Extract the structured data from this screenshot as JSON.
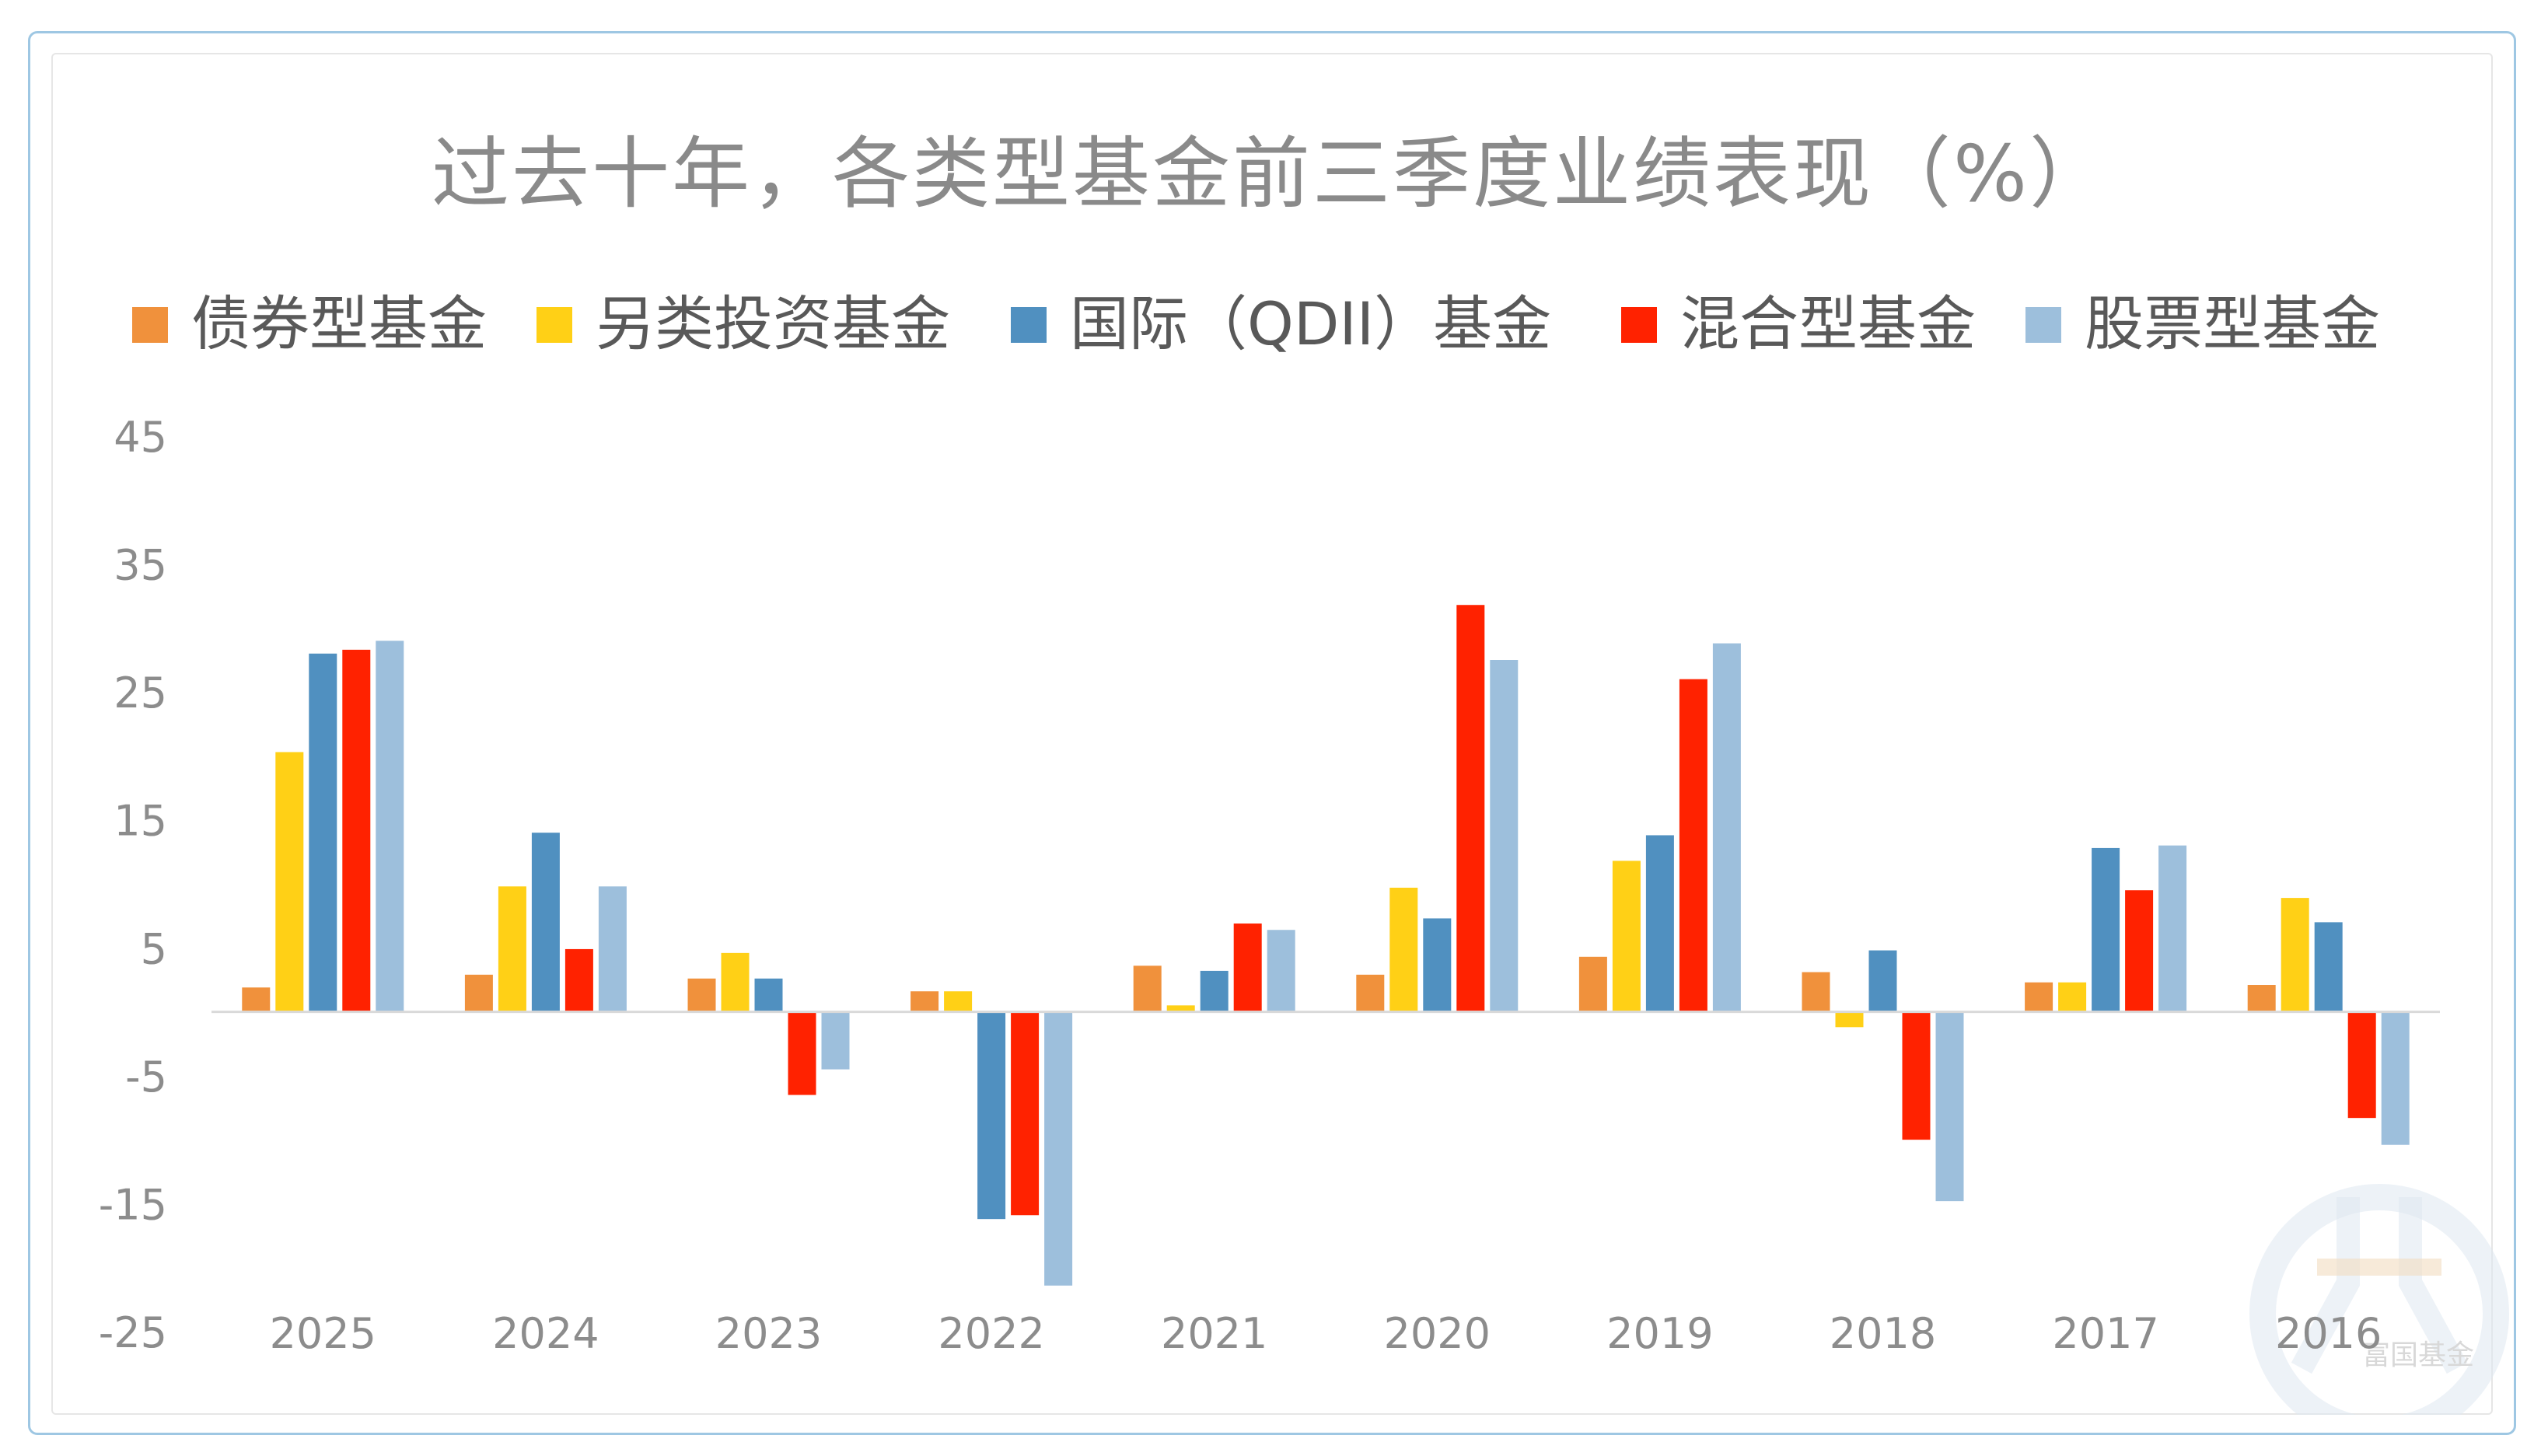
{
  "chart_data": {
    "type": "bar",
    "title": "过去十年，各类型基金前三季度业绩表现（%）",
    "xlabel": "",
    "ylabel": "",
    "ylim": [
      -25,
      45
    ],
    "yticks": [
      45,
      35,
      25,
      15,
      5,
      -5,
      -15,
      -25
    ],
    "categories": [
      "2025",
      "2024",
      "2023",
      "2022",
      "2021",
      "2020",
      "2019",
      "2018",
      "2017",
      "2016"
    ],
    "series": [
      {
        "name": "债券型基金",
        "color": "#f0913c",
        "values": [
          1.9,
          2.9,
          2.6,
          1.6,
          3.6,
          2.9,
          4.3,
          3.1,
          2.3,
          2.1
        ]
      },
      {
        "name": "另类投资基金",
        "color": "#ffd016",
        "values": [
          20.3,
          9.8,
          4.6,
          1.6,
          0.5,
          9.7,
          11.8,
          -1.2,
          2.3,
          8.9
        ]
      },
      {
        "name": "国际（QDII）基金",
        "color": "#5090c0",
        "values": [
          28.0,
          14.0,
          2.6,
          -16.2,
          3.2,
          7.3,
          13.8,
          4.8,
          12.8,
          7.0
        ]
      },
      {
        "name": "混合型基金",
        "color": "#ff2200",
        "values": [
          28.3,
          4.9,
          -6.5,
          -15.9,
          6.9,
          31.8,
          26.0,
          -10.0,
          9.5,
          -8.3
        ]
      },
      {
        "name": "股票型基金",
        "color": "#9dbfdc",
        "values": [
          29.0,
          9.8,
          -4.5,
          -21.4,
          6.4,
          27.5,
          28.8,
          -14.8,
          13.0,
          -10.4
        ]
      }
    ],
    "legend_position": "top",
    "grid": false
  },
  "watermark": {
    "text": "富国基金"
  },
  "colors": {
    "frame": "#9ec7e3",
    "axis": "#d9d9d9",
    "tick_text": "#8c8c8c",
    "title": "#8a8a8a",
    "legend_text": "#595959"
  }
}
